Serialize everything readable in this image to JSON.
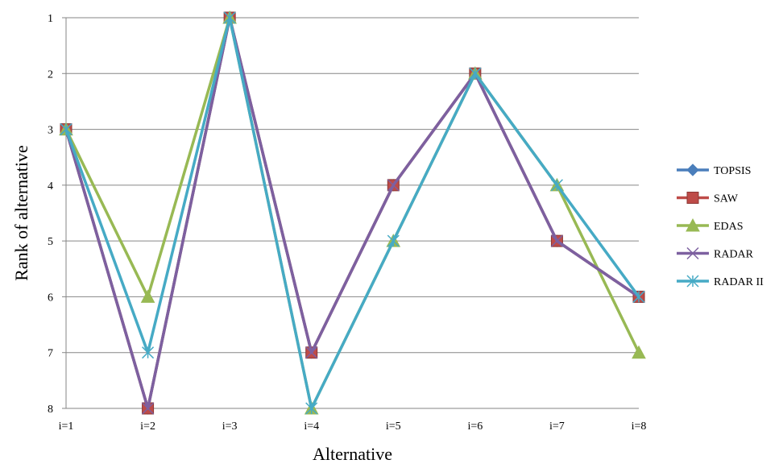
{
  "chart_data": {
    "type": "line",
    "title": "",
    "xlabel": "Alternative",
    "ylabel": "Rank of alternative",
    "categories": [
      "i=1",
      "i=2",
      "i=3",
      "i=4",
      "i=5",
      "i=6",
      "i=7",
      "i=8"
    ],
    "y_reversed": true,
    "ylim": [
      1,
      8
    ],
    "yticks": [
      "1",
      "2",
      "3",
      "4",
      "5",
      "6",
      "7",
      "8"
    ],
    "grid": "horizontal",
    "legend_position": "right",
    "series": [
      {
        "name": "TOPSIS",
        "color": "#4a7ebb",
        "marker": "diamond",
        "values": [
          3,
          8,
          1,
          7,
          4,
          2,
          5,
          6
        ]
      },
      {
        "name": "SAW",
        "color": "#be4b48",
        "marker": "square",
        "values": [
          3,
          8,
          1,
          7,
          4,
          2,
          5,
          6
        ]
      },
      {
        "name": "EDAS",
        "color": "#98b954",
        "marker": "triangle",
        "values": [
          3,
          6,
          1,
          8,
          5,
          2,
          4,
          7
        ]
      },
      {
        "name": "RADAR",
        "color": "#7d60a0",
        "marker": "x",
        "values": [
          3,
          8,
          1,
          7,
          4,
          2,
          5,
          6
        ]
      },
      {
        "name": "RADAR II",
        "color": "#46aac5",
        "marker": "star",
        "values": [
          3,
          7,
          1,
          8,
          5,
          2,
          4,
          6
        ]
      }
    ]
  }
}
